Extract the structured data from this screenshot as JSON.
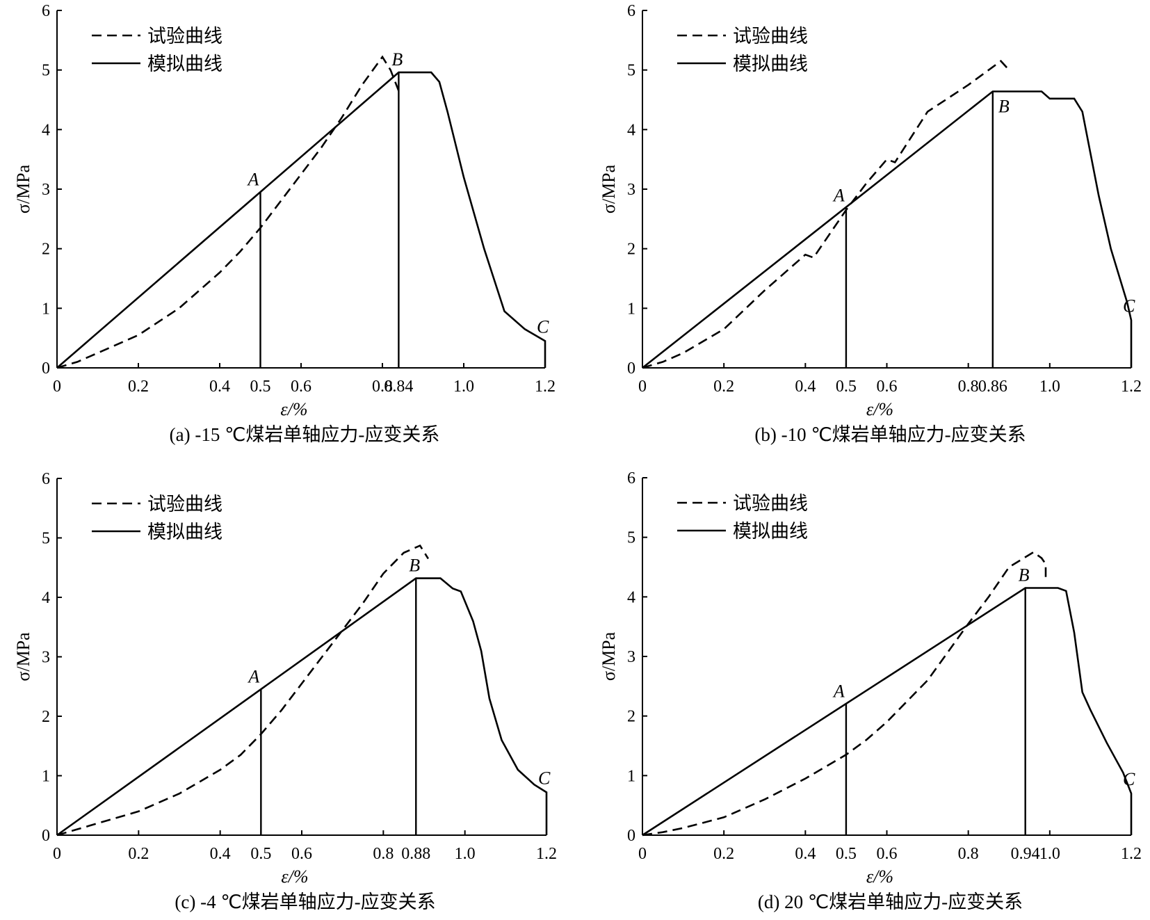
{
  "chart_data": [
    {
      "type": "line",
      "caption": "(a) -15 ℃煤岩单轴应力-应变关系",
      "xlabel": "ε/%",
      "ylabel": "σ/MPa",
      "xlim": [
        0,
        1.2
      ],
      "ylim": [
        0,
        6
      ],
      "x_ticks": [
        "0",
        "0.2",
        "0.4",
        "0.5",
        "0.6",
        "0.8",
        "0.84",
        "1.0",
        "1.2"
      ],
      "x_tick_values": [
        0,
        0.2,
        0.4,
        0.5,
        0.6,
        0.8,
        0.84,
        1.0,
        1.2
      ],
      "y_ticks": [
        "0",
        "1",
        "2",
        "3",
        "4",
        "5",
        "6"
      ],
      "legend": [
        "试验曲线",
        "模拟曲线"
      ],
      "legend_position": "top-left",
      "points": [
        {
          "label": "A",
          "x": 0.5,
          "y": 2.95
        },
        {
          "label": "B",
          "x": 0.84,
          "y": 4.96
        },
        {
          "label": "C",
          "x": 1.2,
          "y": 0.45
        }
      ],
      "series": [
        {
          "name": "试验曲线",
          "style": "dashed",
          "x": [
            0,
            0.05,
            0.1,
            0.2,
            0.3,
            0.4,
            0.45,
            0.5,
            0.55,
            0.6,
            0.65,
            0.7,
            0.75,
            0.8,
            0.82,
            0.84
          ],
          "y": [
            0,
            0.1,
            0.25,
            0.55,
            1.0,
            1.6,
            1.95,
            2.35,
            2.8,
            3.25,
            3.7,
            4.2,
            4.75,
            5.22,
            5.0,
            4.65
          ]
        },
        {
          "name": "模拟曲线",
          "style": "solid",
          "x": [
            0,
            0.84,
            0.92,
            0.94,
            0.96,
            1.0,
            1.05,
            1.1,
            1.15,
            1.2,
            1.2
          ],
          "y": [
            0,
            4.96,
            4.96,
            4.8,
            4.3,
            3.2,
            2.0,
            0.95,
            0.65,
            0.45,
            0
          ]
        }
      ]
    },
    {
      "type": "line",
      "caption": "(b) -10 ℃煤岩单轴应力-应变关系",
      "xlabel": "ε/%",
      "ylabel": "σ/MPa",
      "xlim": [
        0,
        1.2
      ],
      "ylim": [
        0,
        6
      ],
      "x_ticks": [
        "0",
        "0.2",
        "0.4",
        "0.5",
        "0.6",
        "0.8",
        "0.86",
        "1.0",
        "1.2"
      ],
      "x_tick_values": [
        0,
        0.2,
        0.4,
        0.5,
        0.6,
        0.8,
        0.86,
        1.0,
        1.2
      ],
      "y_ticks": [
        "0",
        "1",
        "2",
        "3",
        "4",
        "5",
        "6"
      ],
      "legend": [
        "试验曲线",
        "模拟曲线"
      ],
      "legend_position": "top-left",
      "points": [
        {
          "label": "A",
          "x": 0.5,
          "y": 2.68
        },
        {
          "label": "B",
          "x": 0.86,
          "y": 4.64
        },
        {
          "label": "C",
          "x": 1.2,
          "y": 0.8
        }
      ],
      "series": [
        {
          "name": "试验曲线",
          "style": "dashed",
          "x": [
            0,
            0.05,
            0.1,
            0.2,
            0.3,
            0.4,
            0.42,
            0.45,
            0.5,
            0.55,
            0.6,
            0.62,
            0.7,
            0.8,
            0.88,
            0.9
          ],
          "y": [
            0,
            0.1,
            0.25,
            0.65,
            1.3,
            1.9,
            1.85,
            2.15,
            2.65,
            3.1,
            3.5,
            3.45,
            4.3,
            4.75,
            5.15,
            5.0
          ]
        },
        {
          "name": "模拟曲线",
          "style": "solid",
          "x": [
            0,
            0.86,
            0.98,
            1.0,
            1.06,
            1.08,
            1.1,
            1.12,
            1.15,
            1.19,
            1.2,
            1.2
          ],
          "y": [
            0,
            4.64,
            4.64,
            4.52,
            4.52,
            4.3,
            3.6,
            2.9,
            2.0,
            1.1,
            0.8,
            0
          ]
        }
      ]
    },
    {
      "type": "line",
      "caption": "(c) -4 ℃煤岩单轴应力-应变关系",
      "xlabel": "ε/%",
      "ylabel": "σ/MPa",
      "xlim": [
        0,
        1.2
      ],
      "ylim": [
        0,
        6
      ],
      "x_ticks": [
        "0",
        "0.2",
        "0.4",
        "0.5",
        "0.6",
        "0.8",
        "0.88",
        "1.0",
        "1.2"
      ],
      "x_tick_values": [
        0,
        0.2,
        0.4,
        0.5,
        0.6,
        0.8,
        0.88,
        1.0,
        1.2
      ],
      "y_ticks": [
        "0",
        "1",
        "2",
        "3",
        "4",
        "5",
        "6"
      ],
      "legend": [
        "试验曲线",
        "模拟曲线"
      ],
      "legend_position": "top-left",
      "points": [
        {
          "label": "A",
          "x": 0.5,
          "y": 2.45
        },
        {
          "label": "B",
          "x": 0.88,
          "y": 4.32
        },
        {
          "label": "C",
          "x": 1.2,
          "y": 0.72
        }
      ],
      "series": [
        {
          "name": "试验曲线",
          "style": "dashed",
          "x": [
            0,
            0.05,
            0.1,
            0.2,
            0.3,
            0.4,
            0.45,
            0.5,
            0.55,
            0.6,
            0.65,
            0.7,
            0.75,
            0.8,
            0.85,
            0.89,
            0.91
          ],
          "y": [
            0,
            0.1,
            0.2,
            0.4,
            0.7,
            1.1,
            1.35,
            1.7,
            2.1,
            2.55,
            3.0,
            3.45,
            3.9,
            4.4,
            4.75,
            4.87,
            4.65
          ]
        },
        {
          "name": "模拟曲线",
          "style": "solid",
          "x": [
            0,
            0.88,
            0.94,
            0.97,
            0.99,
            1.02,
            1.04,
            1.06,
            1.09,
            1.13,
            1.17,
            1.2,
            1.2
          ],
          "y": [
            0,
            4.32,
            4.32,
            4.15,
            4.1,
            3.6,
            3.1,
            2.3,
            1.6,
            1.1,
            0.85,
            0.72,
            0
          ]
        }
      ]
    },
    {
      "type": "line",
      "caption": "(d) 20 ℃煤岩单轴应力-应变关系",
      "xlabel": "ε/%",
      "ylabel": "σ/MPa",
      "xlim": [
        0,
        1.2
      ],
      "ylim": [
        0,
        6
      ],
      "x_ticks": [
        "0",
        "0.2",
        "0.4",
        "0.5",
        "0.6",
        "0.8",
        "0.94",
        "1.0",
        "1.2"
      ],
      "x_tick_values": [
        0,
        0.2,
        0.4,
        0.5,
        0.6,
        0.8,
        0.94,
        1.0,
        1.2
      ],
      "y_ticks": [
        "0",
        "1",
        "2",
        "3",
        "4",
        "5",
        "6"
      ],
      "legend": [
        "试验曲线",
        "模拟曲线"
      ],
      "legend_position": "top-left",
      "points": [
        {
          "label": "A",
          "x": 0.5,
          "y": 2.2
        },
        {
          "label": "B",
          "x": 0.94,
          "y": 4.15
        },
        {
          "label": "C",
          "x": 1.2,
          "y": 0.7
        }
      ],
      "series": [
        {
          "name": "试验曲线",
          "style": "dashed",
          "x": [
            0,
            0.05,
            0.1,
            0.2,
            0.3,
            0.4,
            0.45,
            0.5,
            0.55,
            0.6,
            0.7,
            0.8,
            0.85,
            0.9,
            0.96,
            0.98,
            0.99,
            0.99
          ],
          "y": [
            0,
            0.05,
            0.12,
            0.3,
            0.6,
            0.95,
            1.15,
            1.35,
            1.6,
            1.9,
            2.6,
            3.55,
            4.0,
            4.5,
            4.75,
            4.65,
            4.55,
            4.3
          ]
        },
        {
          "name": "模拟曲线",
          "style": "solid",
          "x": [
            0,
            0.94,
            1.02,
            1.04,
            1.06,
            1.08,
            1.1,
            1.14,
            1.18,
            1.2,
            1.2
          ],
          "y": [
            0,
            4.15,
            4.15,
            4.1,
            3.4,
            2.4,
            2.1,
            1.55,
            1.05,
            0.7,
            0
          ]
        }
      ]
    }
  ]
}
